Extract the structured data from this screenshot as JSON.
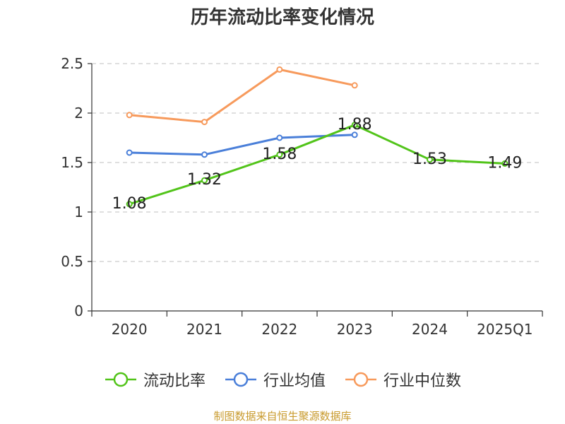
{
  "chart_data": {
    "type": "line",
    "title": "历年流动比率变化情况",
    "categories": [
      "2020",
      "2021",
      "2022",
      "2023",
      "2024",
      "2025Q1"
    ],
    "ylim": [
      0,
      2.5
    ],
    "yticks": [
      "0",
      "0.5",
      "1",
      "1.5",
      "2",
      "2.5"
    ],
    "grid": true,
    "legend_position": "bottom",
    "series": [
      {
        "name": "流动比率",
        "color": "#52c41a",
        "values": [
          1.08,
          1.32,
          1.58,
          1.88,
          1.53,
          1.49
        ],
        "labels": [
          "1.08",
          "1.32",
          "1.58",
          "1.88",
          "1.53",
          "1.49"
        ]
      },
      {
        "name": "行业均值",
        "color": "#4a7fd9",
        "values": [
          1.6,
          1.58,
          1.75,
          1.78,
          null,
          null
        ]
      },
      {
        "name": "行业中位数",
        "color": "#f79a5c",
        "values": [
          1.98,
          1.91,
          2.44,
          2.28,
          null,
          null
        ]
      }
    ]
  },
  "source": "制图数据来自恒生聚源数据库"
}
